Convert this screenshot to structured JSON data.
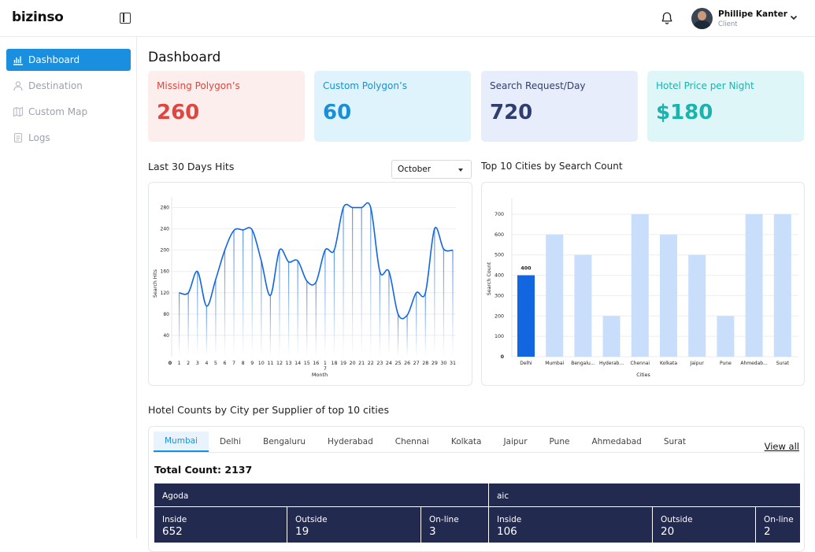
{
  "app": {
    "logo_text": "bizinso"
  },
  "header": {
    "user_name": "Phillipe Kanter",
    "user_role": "Client"
  },
  "sidebar": {
    "items": [
      {
        "label": "Dashboard",
        "icon": "chart-icon",
        "active": true
      },
      {
        "label": "Destination",
        "icon": "user-pin-icon",
        "active": false
      },
      {
        "label": "Custom Map",
        "icon": "map-icon",
        "active": false
      },
      {
        "label": "Logs",
        "icon": "logs-icon",
        "active": false
      }
    ]
  },
  "page": {
    "title": "Dashboard"
  },
  "stats": [
    {
      "label": "Missing Polygon’s",
      "value": "260",
      "bg": "#fdeeee",
      "fg": "#e0453e"
    },
    {
      "label": "Custom Polygon’s",
      "value": "60",
      "bg": "#dff3fc",
      "fg": "#1a8fd6"
    },
    {
      "label": "Search Request/Day",
      "value": "720",
      "bg": "#e8edfb",
      "fg": "#2f3e6e"
    },
    {
      "label": "Hotel Price per Night",
      "value": "$180",
      "bg": "#dff6f8",
      "fg": "#1bb3ad"
    }
  ],
  "hits_section": {
    "title": "Last 30 Days Hits",
    "month_select": "October"
  },
  "cities_section": {
    "title": "Top 10 Cities by Search Count"
  },
  "chart_data": [
    {
      "type": "line",
      "title": "Last 30 Days Hits",
      "xlabel": "Month",
      "ylabel": "Search Hits",
      "x": [
        "0",
        "1",
        "2",
        "3",
        "4",
        "5",
        "6",
        "7",
        "8",
        "9",
        "10",
        "11",
        "12",
        "13",
        "14",
        "15",
        "16",
        "17",
        "18",
        "19",
        "20",
        "21",
        "22",
        "23",
        "24",
        "25",
        "26",
        "27",
        "28",
        "29",
        "30",
        "31"
      ],
      "x_labels": [
        "0",
        "1",
        "2",
        "3",
        "4",
        "5",
        "6",
        "7",
        "8",
        "9",
        "10",
        "11",
        "12",
        "13",
        "14",
        "15",
        "16",
        "1\n7",
        "18",
        "19",
        "20",
        "21",
        "22",
        "23",
        "24",
        "25",
        "26",
        "27",
        "28",
        "29",
        "30",
        "31"
      ],
      "values": [
        null,
        120,
        120,
        160,
        95,
        145,
        200,
        237,
        238,
        238,
        180,
        115,
        200,
        178,
        180,
        142,
        140,
        200,
        200,
        280,
        280,
        280,
        280,
        160,
        160,
        80,
        78,
        120,
        120,
        240,
        202,
        200
      ],
      "yticks": [
        40,
        80,
        120,
        160,
        200,
        240,
        280
      ],
      "ylim": [
        0,
        300
      ],
      "color": "#1266e0"
    },
    {
      "type": "bar",
      "title": "Top 10 Cities by Search Count",
      "xlabel": "Cities",
      "ylabel": "Search Count",
      "categories": [
        "Delhi",
        "Mumbai",
        "Bengalu...",
        "Hyderab...",
        "Chennai",
        "Kolkata",
        "Jaipur",
        "Pune",
        "Ahmedab...",
        "Surat"
      ],
      "values": [
        400,
        600,
        500,
        200,
        700,
        600,
        500,
        200,
        700,
        700
      ],
      "highlight_index": 0,
      "highlight_label": "400",
      "yticks": [
        0,
        100,
        200,
        300,
        400,
        500,
        600,
        700
      ],
      "ylim": [
        0,
        700
      ],
      "color": "#c9defa",
      "highlight_color": "#1266e0"
    }
  ],
  "hotel_counts": {
    "title": "Hotel Counts by City per Supplier of top 10 cities",
    "tabs": [
      "Mumbai",
      "Delhi",
      "Bengaluru",
      "Hyderabad",
      "Chennai",
      "Kolkata",
      "Jaipur",
      "Pune",
      "Ahmedabad",
      "Surat"
    ],
    "active_tab": "Mumbai",
    "view_all": "View all",
    "total_count": "Total Count: 2137",
    "suppliers": [
      {
        "name": "Agoda",
        "inside_label": "Inside",
        "inside": "652",
        "outside_label": "Outside",
        "outside": "19",
        "online_label": "On-line",
        "online": "3"
      },
      {
        "name": "aic",
        "inside_label": "Inside",
        "inside": "106",
        "outside_label": "Outside",
        "outside": "20",
        "online_label": "On-line",
        "online": "2"
      }
    ]
  }
}
